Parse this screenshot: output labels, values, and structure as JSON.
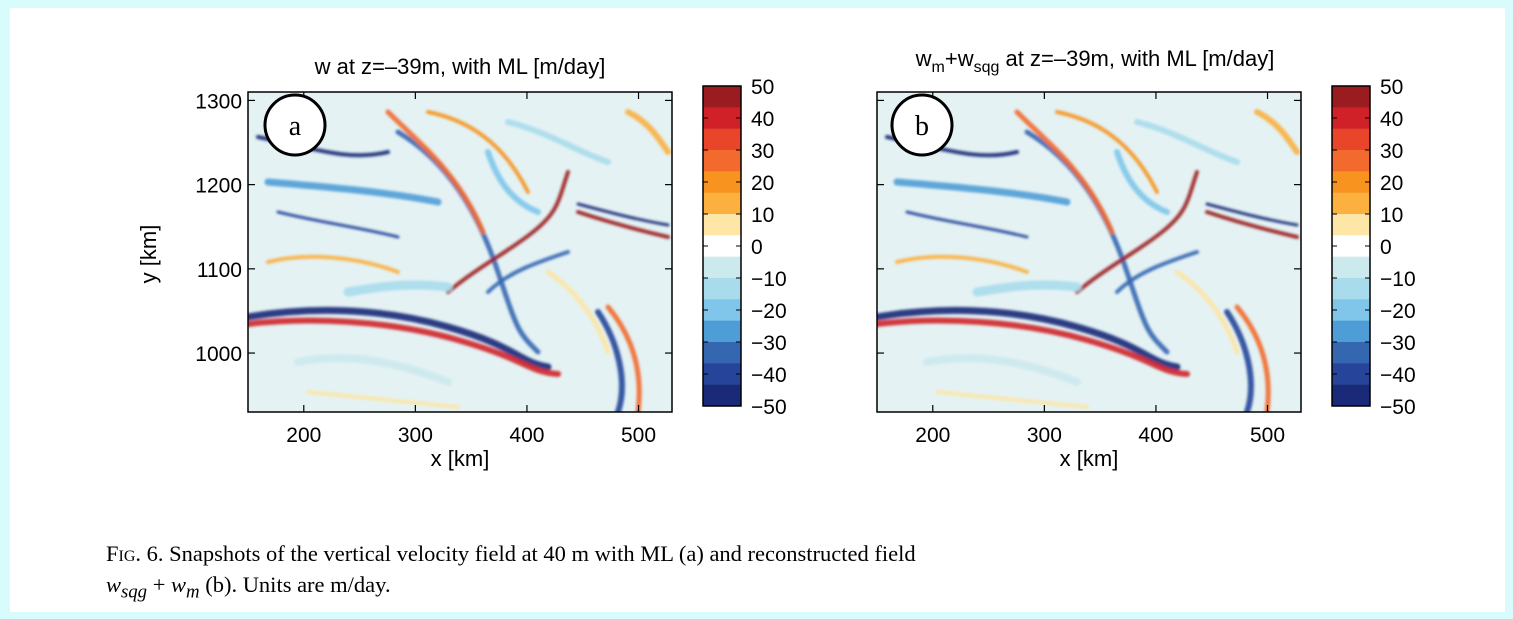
{
  "panels": [
    {
      "id": "a",
      "label": "a",
      "title": {
        "main": "w at z=–39m, with ML [m/day]"
      },
      "x_axis": {
        "label": "x [km]",
        "ticks": [
          "200",
          "300",
          "400",
          "500"
        ]
      },
      "y_axis": {
        "label": "y [km]",
        "ticks": [
          "1300",
          "1200",
          "1100",
          "1000"
        ]
      }
    },
    {
      "id": "b",
      "label": "b",
      "title": {
        "w": "w",
        "sub_m": "m",
        "plus": "+w",
        "sub_sqg": "sqg",
        "rest": " at z=–39m, with ML [m/day]"
      },
      "x_axis": {
        "label": "x [km]",
        "ticks": [
          "200",
          "300",
          "400",
          "500"
        ]
      }
    }
  ],
  "colorbar": {
    "ticks": [
      "50",
      "40",
      "30",
      "20",
      "10",
      "0",
      "−10",
      "−20",
      "−30",
      "−40",
      "−50"
    ],
    "colors": [
      "#9b1c20",
      "#cf2127",
      "#e8452b",
      "#f26a2e",
      "#f7931e",
      "#fbb040",
      "#fde6a6",
      "#ffffff",
      "#cce9ee",
      "#a8dbec",
      "#7fc6ea",
      "#4f9dd6",
      "#3567b1",
      "#26459a",
      "#1b2a78"
    ]
  },
  "caption": {
    "fig_label": "Fig. 6.",
    "text1": " Snapshots of the vertical velocity field at 40 m with ML (a) and reconstructed field",
    "w1": "w",
    "sub1": "sqg",
    "op": " + ",
    "w2": "w",
    "sub2": "m",
    "text2": " (b). Units are m/day."
  },
  "chart_data": [
    {
      "type": "heatmap",
      "title": "w at z=–39m, with ML [m/day]",
      "xlabel": "x [km]",
      "ylabel": "y [km]",
      "xlim": [
        150,
        530
      ],
      "ylim": [
        930,
        1310
      ],
      "x_ticks": [
        200,
        300,
        400,
        500
      ],
      "y_ticks": [
        1000,
        1100,
        1200,
        1300
      ],
      "colorbar_range": [
        -50,
        50
      ],
      "colorbar_step": 10,
      "panel_label": "a"
    },
    {
      "type": "heatmap",
      "title": "w_m+w_sqg at z=–39m, with ML [m/day]",
      "xlabel": "x [km]",
      "xlim": [
        150,
        530
      ],
      "ylim": [
        930,
        1310
      ],
      "x_ticks": [
        200,
        300,
        400,
        500
      ],
      "y_ticks": [
        1000,
        1100,
        1200,
        1300
      ],
      "colorbar_range": [
        -50,
        50
      ],
      "colorbar_step": 10,
      "panel_label": "b"
    }
  ]
}
